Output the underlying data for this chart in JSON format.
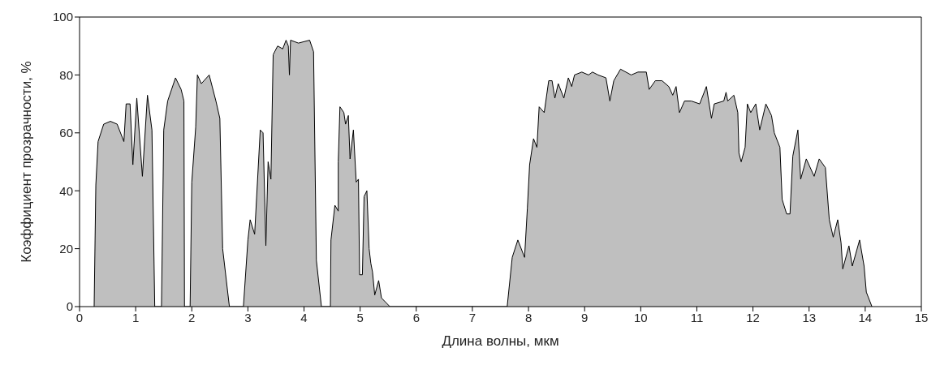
{
  "chart_data": {
    "type": "area",
    "xlabel": "Длина волны, мкм",
    "ylabel": "Коэффициент прозрачности, %",
    "xlim": [
      0,
      15
    ],
    "xticks": [
      0,
      1,
      2,
      3,
      4,
      5,
      6,
      7,
      8,
      9,
      10,
      11,
      12,
      13,
      14,
      15
    ],
    "ylim": [
      0,
      100
    ],
    "yticks": [
      0,
      20,
      40,
      60,
      80,
      100
    ],
    "series": [
      {
        "color": "#bfbfbf",
        "x": [
          0.26,
          0.29,
          0.33,
          0.43,
          0.55,
          0.67,
          0.79,
          0.83,
          0.9,
          0.95,
          1.02,
          1.12,
          1.21,
          1.29,
          1.34,
          1.46,
          1.5,
          1.57,
          1.71,
          1.81,
          1.86,
          1.87,
          1.97,
          2.0,
          2.07,
          2.1,
          2.17,
          2.31,
          2.43,
          2.5,
          2.55,
          2.67,
          2.92,
          3.0,
          3.04,
          3.12,
          3.22,
          3.27,
          3.32,
          3.36,
          3.41,
          3.45,
          3.53,
          3.62,
          3.68,
          3.72,
          3.74,
          3.76,
          3.9,
          4.1,
          4.17,
          4.22,
          4.31,
          4.47,
          4.48,
          4.55,
          4.61,
          4.61,
          4.64,
          4.71,
          4.74,
          4.79,
          4.82,
          4.88,
          4.93,
          4.97,
          4.99,
          5.04,
          5.07,
          5.12,
          5.16,
          5.19,
          5.22,
          5.26,
          5.33,
          5.38,
          5.53,
          7.62,
          7.71,
          7.81,
          7.93,
          7.98,
          8.02,
          8.09,
          8.15,
          8.19,
          8.28,
          8.36,
          8.42,
          8.47,
          8.53,
          8.63,
          8.71,
          8.77,
          8.82,
          8.95,
          9.07,
          9.14,
          9.24,
          9.38,
          9.45,
          9.52,
          9.64,
          9.83,
          9.95,
          10.1,
          10.15,
          10.26,
          10.38,
          10.5,
          10.57,
          10.63,
          10.69,
          10.78,
          10.9,
          11.05,
          11.17,
          11.26,
          11.31,
          11.48,
          11.52,
          11.55,
          11.66,
          11.73,
          11.75,
          11.79,
          11.86,
          11.9,
          11.96,
          12.05,
          12.12,
          12.23,
          12.33,
          12.38,
          12.48,
          12.52,
          12.6,
          12.66,
          12.71,
          12.8,
          12.85,
          12.95,
          13.09,
          13.18,
          13.29,
          13.36,
          13.43,
          13.51,
          13.57,
          13.6,
          13.71,
          13.77,
          13.9,
          13.98,
          14.02,
          14.12
        ],
        "values": [
          0,
          42,
          57,
          63,
          64,
          63,
          57,
          70,
          70,
          49,
          72,
          45,
          73,
          61,
          0,
          0,
          61,
          71,
          79,
          75,
          71,
          0,
          0,
          43,
          62,
          80,
          77,
          80,
          71,
          65,
          20,
          0,
          0,
          23,
          30,
          25,
          61,
          60,
          21,
          50,
          44,
          87,
          90,
          89,
          92,
          90,
          80,
          92,
          91,
          92,
          88,
          16,
          0,
          0,
          23,
          35,
          33,
          50,
          69,
          67,
          63,
          66,
          51,
          61,
          43,
          44,
          11,
          11,
          38,
          40,
          20,
          15,
          12,
          4,
          9,
          3,
          0,
          0,
          17,
          23,
          17,
          34,
          49,
          58,
          55,
          69,
          67,
          78,
          78,
          72,
          77,
          72,
          79,
          76,
          80,
          81,
          80,
          81,
          80,
          79,
          71,
          78,
          82,
          80,
          81,
          81,
          75,
          78,
          78,
          76,
          73,
          76,
          67,
          71,
          71,
          70,
          76,
          65,
          70,
          71,
          74,
          71,
          73,
          67,
          53,
          50,
          55,
          70,
          67,
          70,
          61,
          70,
          66,
          60,
          55,
          37,
          32,
          32,
          52,
          61,
          44,
          51,
          45,
          51,
          48,
          30,
          24,
          30,
          22,
          13,
          21,
          14,
          23,
          14,
          5,
          0
        ]
      }
    ]
  }
}
